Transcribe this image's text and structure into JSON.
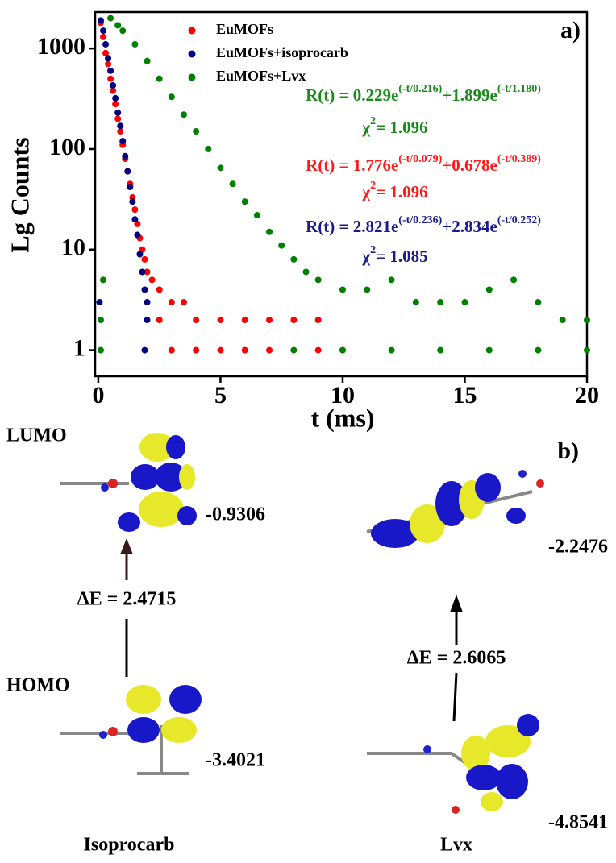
{
  "chart_data": {
    "type": "scatter",
    "panel_label": "a)",
    "x_label": "t (ms)",
    "y_label": "Lg Counts",
    "xlim": [
      -0.13,
      20
    ],
    "ylim": [
      0.55,
      2300
    ],
    "y_scale": "log",
    "xticks": [
      0,
      5,
      10,
      15,
      20
    ],
    "yticks": [
      1,
      10,
      100,
      1000
    ],
    "series": [
      {
        "name": "EuMOFs",
        "color": "#ff0000",
        "x": [
          0.1,
          0.2,
          0.3,
          0.4,
          0.5,
          0.6,
          0.7,
          0.8,
          0.9,
          1.0,
          1.1,
          1.2,
          1.3,
          1.4,
          1.5,
          1.6,
          1.7,
          1.8,
          1.9,
          2.0,
          2.2,
          2.5,
          3.0,
          3.5,
          2.5,
          4.0,
          5.0,
          6.0,
          7.0,
          8.0,
          9.0,
          3.0,
          4.0,
          5.0,
          6.0,
          7.0,
          9.0,
          10.0
        ],
        "values": [
          1800,
          1300,
          900,
          700,
          500,
          380,
          280,
          200,
          150,
          110,
          80,
          60,
          45,
          33,
          25,
          18,
          13,
          10,
          8,
          6,
          5,
          4,
          3,
          3,
          2,
          2,
          2,
          2,
          2,
          2,
          2,
          1,
          1,
          1,
          1,
          1,
          1,
          1
        ]
      },
      {
        "name": "EuMOFs+isoprocarb",
        "color": "#000080",
        "x": [
          0.1,
          0.2,
          0.3,
          0.4,
          0.5,
          0.6,
          0.7,
          0.8,
          0.9,
          1.0,
          1.1,
          1.2,
          1.3,
          1.4,
          1.5,
          1.6,
          1.7,
          1.8,
          1.9,
          2.0,
          2.0,
          1.9,
          0.05
        ],
        "values": [
          1900,
          1500,
          1100,
          800,
          600,
          430,
          320,
          230,
          170,
          120,
          85,
          60,
          42,
          30,
          20,
          14,
          9,
          6,
          4,
          3,
          2,
          1,
          3
        ]
      },
      {
        "name": "EuMOFs+Lvx",
        "color": "#008000",
        "x": [
          0.5,
          0.8,
          1.0,
          1.5,
          2.0,
          2.5,
          3.0,
          3.5,
          4.0,
          4.5,
          5.0,
          5.5,
          6.0,
          6.5,
          7.0,
          7.5,
          8.0,
          8.5,
          9.0,
          10,
          11,
          12,
          13,
          14,
          15,
          16,
          17,
          18,
          19,
          20,
          8,
          10,
          12,
          14,
          16,
          18,
          20,
          0.2,
          0.1,
          0.1
        ],
        "values": [
          2000,
          1700,
          1500,
          1100,
          750,
          500,
          330,
          220,
          150,
          100,
          65,
          45,
          30,
          22,
          15,
          11,
          8,
          6,
          5,
          4,
          4,
          5,
          3,
          3,
          3,
          4,
          5,
          3,
          2,
          2,
          1,
          1,
          1,
          1,
          1,
          1,
          1,
          5,
          2,
          1
        ]
      }
    ],
    "annotations": [
      {
        "color": "#1a8a1a",
        "parts": [
          "R(t) = 0.229e",
          "(-t/0.216)",
          "+1.899e",
          "(-t/1.180)"
        ],
        "chi": [
          "χ",
          "2",
          "= 1.096"
        ]
      },
      {
        "color": "#ff1a1a",
        "parts": [
          "R(t) = 1.776e",
          "(-t/0.079)",
          "+0.678e",
          "(-t/0.389)"
        ],
        "chi": [
          "χ",
          "2",
          "= 1.096"
        ]
      },
      {
        "color": "#1a1a8a",
        "parts": [
          "R(t) = 2.821e",
          "(-t/0.236)",
          "+2.834e",
          "(-t/0.252)"
        ],
        "chi": [
          "χ",
          "2",
          "= 1.085"
        ]
      }
    ]
  },
  "panel_b": {
    "label": "b)",
    "lumo": "LUMO",
    "homo": "HOMO",
    "left": {
      "name": "Isoprocarb",
      "lumo_energy": "-0.9306",
      "homo_energy": "-3.4021",
      "gap": "ΔE = 2.4715"
    },
    "right": {
      "name": "Lvx",
      "lumo_energy": "-2.2476",
      "homo_energy": "-4.8541",
      "gap": "ΔE = 2.6065"
    }
  }
}
